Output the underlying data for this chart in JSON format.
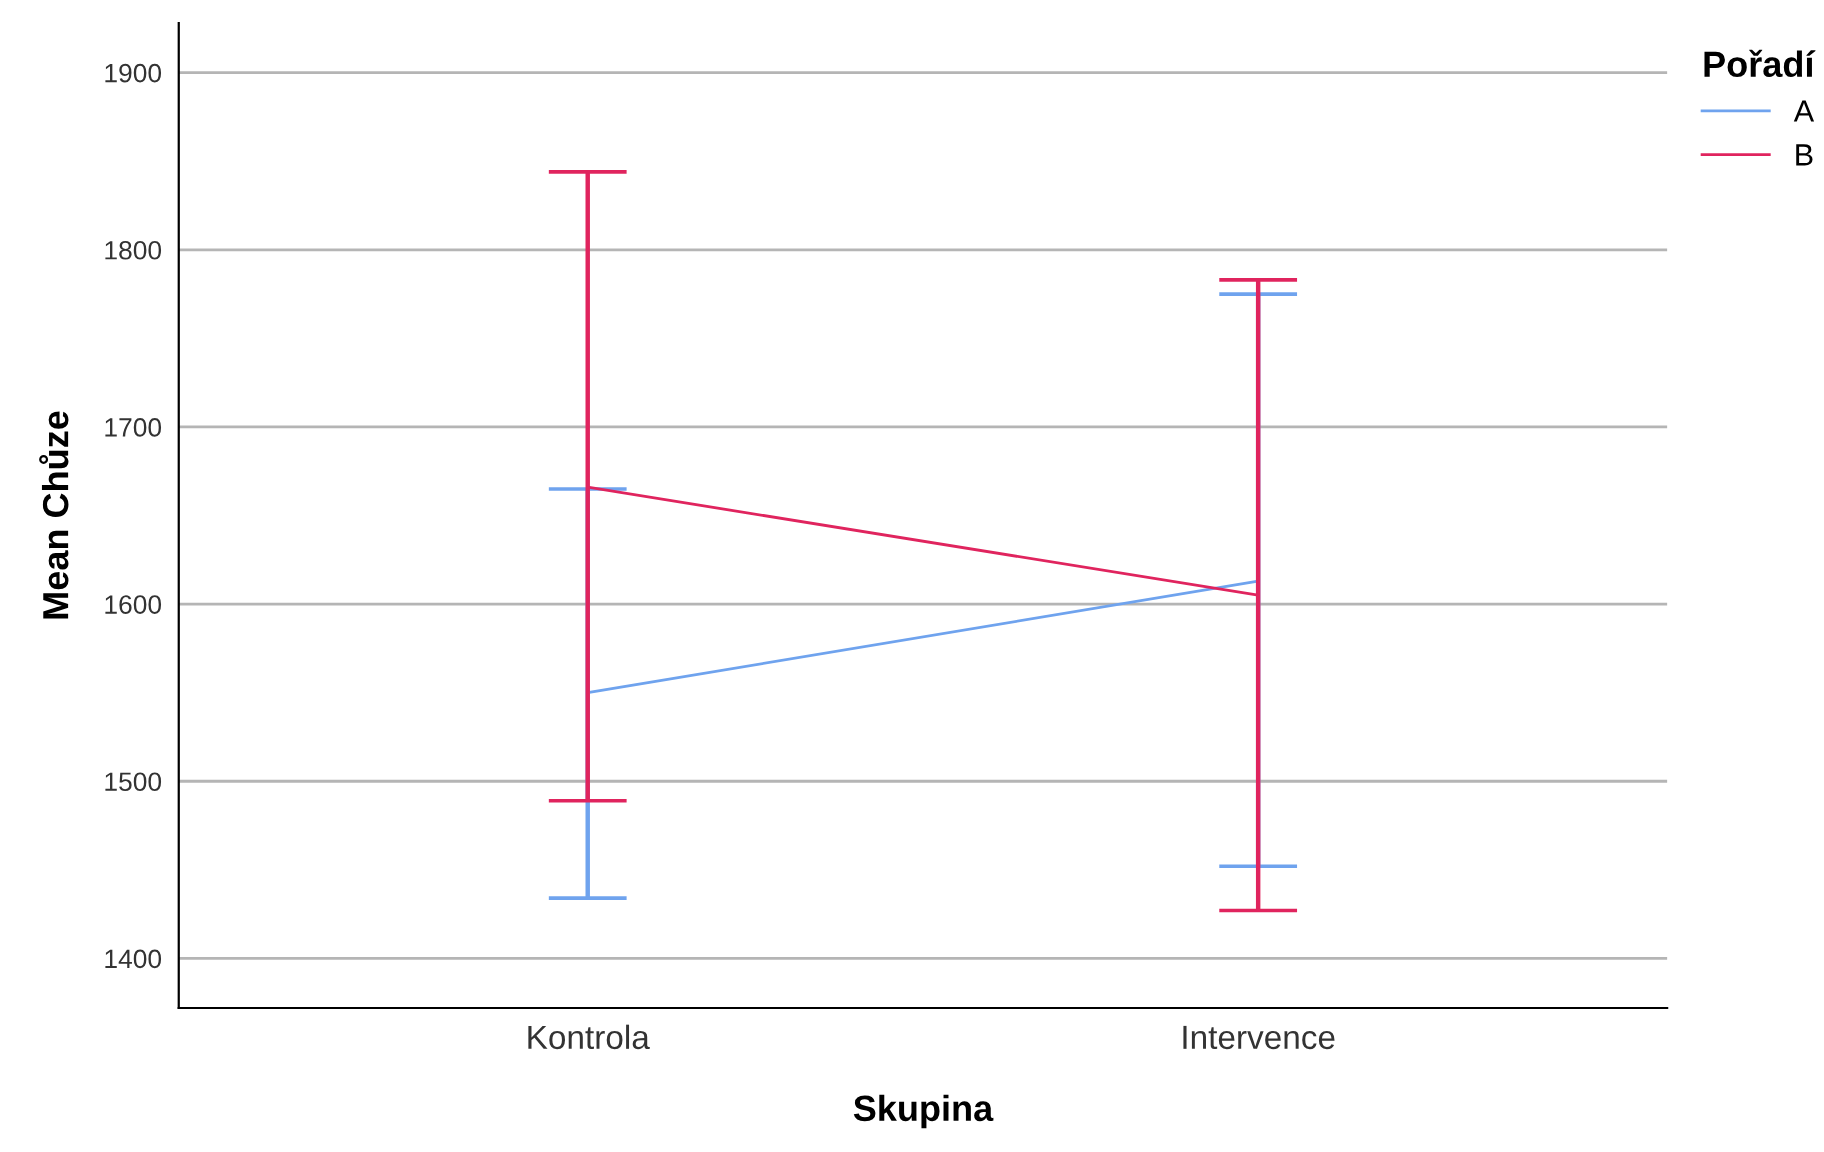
{
  "chart_data": {
    "type": "line",
    "xlabel": "Skupina",
    "ylabel": "Mean Chůze",
    "legend_title": "Pořadí",
    "categories": [
      "Kontrola",
      "Intervence"
    ],
    "series": [
      {
        "name": "A",
        "color": "#6fa3ee",
        "values": [
          1550,
          1613
        ],
        "errors": [
          [
            1434,
            1665
          ],
          [
            1452,
            1775
          ]
        ]
      },
      {
        "name": "B",
        "color": "#e0245e",
        "values": [
          1666,
          1605
        ],
        "errors": [
          [
            1489,
            1844
          ],
          [
            1427,
            1783
          ]
        ]
      }
    ],
    "ylim": [
      1372,
      1928
    ],
    "yticks": [
      1400,
      1500,
      1600,
      1700,
      1800,
      1900
    ],
    "grid": "y",
    "legend": "top right",
    "marker": "none",
    "line_style": "solid"
  }
}
